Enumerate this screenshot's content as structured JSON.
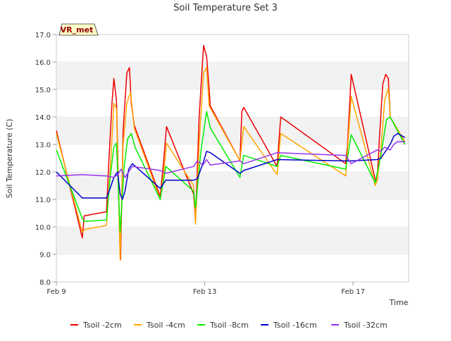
{
  "chart_data": {
    "type": "line",
    "title": "Soil Temperature Set 3",
    "xlabel": "Time",
    "ylabel": "Soil Temperature (C)",
    "ylim": [
      8.0,
      17.0
    ],
    "xlim": [
      0,
      9.5
    ],
    "yticks": [
      8.0,
      9.0,
      10.0,
      11.0,
      12.0,
      13.0,
      14.0,
      15.0,
      16.0,
      17.0
    ],
    "ytick_labels": [
      "8.0",
      "9.0",
      "10.0",
      "11.0",
      "12.0",
      "13.0",
      "14.0",
      "15.0",
      "16.0",
      "17.0"
    ],
    "xticks": [
      0,
      4,
      8
    ],
    "xtick_labels": [
      "Feb 9",
      "Feb 13",
      "Feb 17"
    ],
    "x_units": "days since Feb 9",
    "grid": "horizontal alternating bands",
    "legend_position": "bottom",
    "annotation": "VR_met",
    "series": [
      {
        "name": "Tsoil -2cm",
        "color": "#ee0000",
        "x": [
          0.0,
          0.7,
          0.75,
          1.35,
          1.42,
          1.5,
          1.55,
          1.62,
          1.72,
          1.73,
          1.8,
          1.9,
          1.97,
          2.02,
          2.1,
          2.8,
          2.9,
          2.97,
          3.7,
          3.75,
          3.85,
          3.97,
          4.05,
          4.12,
          4.15,
          4.95,
          5.0,
          5.05,
          5.95,
          6.05,
          7.8,
          7.85,
          7.95,
          8.6,
          8.65,
          8.7,
          8.8,
          8.88,
          8.95,
          9.0,
          9.4
        ],
        "y": [
          13.5,
          9.6,
          10.4,
          10.55,
          12.5,
          14.5,
          15.4,
          14.6,
          9.0,
          8.8,
          13.5,
          15.6,
          15.8,
          14.5,
          13.7,
          11.1,
          12.5,
          13.65,
          11.2,
          10.2,
          14.0,
          16.6,
          16.2,
          15.0,
          14.4,
          12.4,
          14.2,
          14.35,
          12.2,
          14.0,
          12.3,
          13.0,
          15.55,
          11.7,
          11.7,
          13.0,
          15.2,
          15.55,
          15.4,
          14.0,
          13.0
        ]
      },
      {
        "name": "Tsoil -4cm",
        "color": "#ffa500",
        "x": [
          0.0,
          0.7,
          0.75,
          1.35,
          1.45,
          1.55,
          1.62,
          1.72,
          1.8,
          1.9,
          2.0,
          2.1,
          2.8,
          2.9,
          2.97,
          3.7,
          3.75,
          3.85,
          3.97,
          4.05,
          4.12,
          4.95,
          5.05,
          5.95,
          6.05,
          7.8,
          7.95,
          8.6,
          8.65,
          8.75,
          8.85,
          8.95,
          9.0,
          9.4
        ],
        "y": [
          13.4,
          9.8,
          9.9,
          10.05,
          12.0,
          14.5,
          14.3,
          8.8,
          13.0,
          14.5,
          14.9,
          13.6,
          11.0,
          12.0,
          13.05,
          11.5,
          10.1,
          13.0,
          15.6,
          15.8,
          14.4,
          12.4,
          13.65,
          11.9,
          13.4,
          11.85,
          14.75,
          11.5,
          11.7,
          12.8,
          14.6,
          15.05,
          14.0,
          13.1
        ]
      },
      {
        "name": "Tsoil -8cm",
        "color": "#00ee00",
        "x": [
          0.0,
          0.7,
          0.75,
          1.35,
          1.45,
          1.55,
          1.62,
          1.72,
          1.82,
          1.92,
          2.02,
          2.12,
          2.8,
          2.95,
          3.7,
          3.75,
          3.9,
          4.05,
          4.15,
          4.95,
          5.05,
          5.95,
          6.05,
          7.8,
          7.95,
          8.6,
          8.75,
          8.9,
          9.0,
          9.4
        ],
        "y": [
          12.8,
          10.3,
          10.2,
          10.25,
          11.8,
          12.9,
          13.05,
          9.8,
          12.1,
          13.2,
          13.4,
          12.9,
          11.0,
          12.2,
          11.3,
          10.7,
          12.8,
          14.2,
          13.6,
          11.8,
          12.6,
          12.2,
          12.6,
          12.1,
          13.35,
          11.6,
          12.6,
          13.9,
          14.0,
          13.0
        ]
      },
      {
        "name": "Tsoil -16cm",
        "color": "#0000cc",
        "x": [
          0.0,
          0.7,
          1.35,
          1.45,
          1.55,
          1.65,
          1.72,
          1.78,
          1.85,
          1.95,
          2.05,
          2.8,
          2.95,
          3.7,
          3.8,
          3.95,
          4.05,
          4.15,
          4.95,
          5.05,
          5.95,
          7.8,
          7.95,
          8.65,
          8.75,
          8.9,
          9.0,
          9.1,
          9.2,
          9.4
        ],
        "y": [
          12.0,
          11.05,
          11.05,
          11.4,
          11.8,
          12.0,
          11.2,
          11.0,
          11.3,
          12.1,
          12.3,
          11.4,
          11.7,
          11.7,
          11.75,
          12.3,
          12.75,
          12.7,
          11.95,
          12.05,
          12.45,
          12.4,
          12.4,
          12.45,
          12.5,
          12.8,
          13.0,
          13.3,
          13.4,
          13.25
        ]
      },
      {
        "name": "Tsoil -32cm",
        "color": "#9933ee",
        "x": [
          0.0,
          0.7,
          1.35,
          1.55,
          1.65,
          1.75,
          1.85,
          1.95,
          2.05,
          2.8,
          2.95,
          3.7,
          3.8,
          3.95,
          4.05,
          4.15,
          4.95,
          5.05,
          5.95,
          7.8,
          7.95,
          8.65,
          8.75,
          8.85,
          9.0,
          9.1,
          9.2,
          9.4
        ],
        "y": [
          11.85,
          11.9,
          11.85,
          11.8,
          11.9,
          12.1,
          11.8,
          12.0,
          12.2,
          12.05,
          11.95,
          12.2,
          12.4,
          12.25,
          12.45,
          12.25,
          12.4,
          12.3,
          12.7,
          12.6,
          12.3,
          12.8,
          12.75,
          12.9,
          12.8,
          13.0,
          13.1,
          13.1
        ]
      }
    ]
  }
}
